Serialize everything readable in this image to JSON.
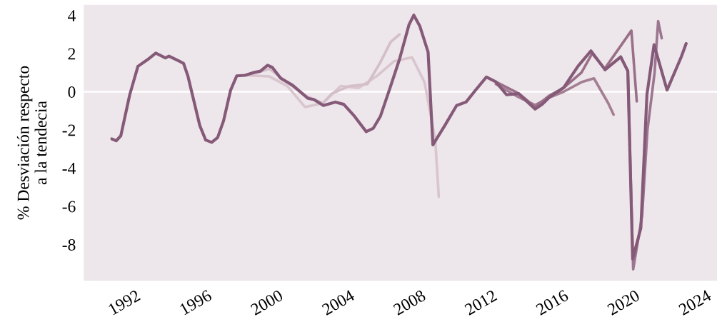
{
  "chart_data": {
    "type": "line",
    "ylabel": "% Desviación respecto\na la tendecia",
    "xlim": [
      1989.1,
      2024.6
    ],
    "ylim": [
      -9.9,
      4.55
    ],
    "xticks": [
      1992,
      1996,
      2000,
      2004,
      2008,
      2012,
      2016,
      2020,
      2024
    ],
    "yticks": [
      {
        "value": 4,
        "label": "4"
      },
      {
        "value": 2,
        "label": "2"
      },
      {
        "value": 0,
        "label": "0"
      },
      {
        "value": -2,
        "label": "-2"
      },
      {
        "value": -4,
        "label": "-4"
      },
      {
        "value": -6,
        "label": "-6"
      },
      {
        "value": -8,
        "label": "-8"
      }
    ],
    "grid": false,
    "marker": "none",
    "line_style": "solid",
    "ref_lines": [
      {
        "axis": "y",
        "value": 0,
        "color": "#ffffff",
        "line_style": "solid"
      }
    ],
    "series": [
      {
        "color": "#d9c5ce",
        "x": [
          1998.2,
          1999.5,
          2000.5,
          2001.5,
          2002.5,
          2003.5,
          2004.5,
          2005.5,
          2006.5,
          2007.5,
          2008.2,
          2008.8,
          2009.0
        ],
        "values": [
          0.86,
          0.8,
          0.3,
          -0.8,
          -0.6,
          0.3,
          0.2,
          0.8,
          1.6,
          1.8,
          0.5,
          -2.5,
          -5.5
        ]
      },
      {
        "color": "#d4bfc9",
        "x": [
          1998.5,
          1999.5,
          2000.5,
          2001.5,
          2002.5,
          2003.0,
          2004.0,
          2005.0,
          2005.7,
          2006.3,
          2006.8
        ],
        "values": [
          0.9,
          1.2,
          0.5,
          -0.2,
          -0.6,
          -0.1,
          0.3,
          0.4,
          1.5,
          2.6,
          3.0
        ]
      },
      {
        "color": "#a47e93",
        "x": [
          2012.2,
          2013.5,
          2014.4,
          2015.2,
          2016.0,
          2017.0,
          2017.7,
          2018.5,
          2018.8
        ],
        "values": [
          0.4,
          -0.3,
          -0.7,
          -0.3,
          0.0,
          0.5,
          0.7,
          -0.6,
          -1.2
        ]
      },
      {
        "color": "#9a7089",
        "x": [
          2012.2,
          2013.5,
          2014.4,
          2015.2,
          2016.0,
          2017.0,
          2017.6,
          2018.3,
          2019.8,
          2020.1
        ],
        "values": [
          0.52,
          -0.1,
          -0.8,
          -0.2,
          0.2,
          1.0,
          2.0,
          1.2,
          3.2,
          -0.5
        ]
      },
      {
        "color": "#9c7590",
        "x": [
          2018.3,
          2019.2,
          2019.6,
          2019.9,
          2020.4,
          2020.7,
          2021.1,
          2021.3,
          2021.5
        ],
        "values": [
          1.15,
          1.8,
          1.1,
          -9.3,
          -6.5,
          -2.0,
          1.0,
          3.7,
          2.8
        ]
      },
      {
        "color": "#855a78",
        "x": [
          1990.67,
          1990.91,
          1991.17,
          1991.67,
          1992.13,
          1992.67,
          1993.13,
          1993.67,
          1993.87,
          1994.53,
          1994.69,
          1994.93,
          1995.6,
          1995.93,
          1996.27,
          1996.6,
          1996.93,
          1997.33,
          1997.67,
          1998.13,
          1998.67,
          1999.0,
          1999.4,
          1999.67,
          2000.13,
          2000.8,
          2001.67,
          2002.0,
          2002.53,
          2003.2,
          2003.67,
          2004.27,
          2004.93,
          2005.33,
          2005.73,
          2006.27,
          2006.8,
          2007.33,
          2007.6,
          2007.93,
          2008.4,
          2008.67,
          2009.33,
          2010.0,
          2010.53,
          2011.07,
          2011.67,
          2012.2,
          2012.8,
          2013.47,
          2014.4,
          2014.8,
          2015.2,
          2016.0,
          2016.8,
          2017.53,
          2018.33,
          2019.2,
          2019.6,
          2019.87,
          2020.33,
          2020.67,
          2021.07,
          2021.8,
          2022.6,
          2022.87
        ],
        "values": [
          -2.47,
          -2.57,
          -2.31,
          -0.16,
          1.33,
          1.68,
          2.02,
          1.77,
          1.86,
          1.56,
          1.48,
          0.83,
          -1.78,
          -2.53,
          -2.65,
          -2.4,
          -1.53,
          0.09,
          0.83,
          0.86,
          1.02,
          1.08,
          1.39,
          1.27,
          0.71,
          0.34,
          -0.35,
          -0.41,
          -0.72,
          -0.54,
          -0.66,
          -1.28,
          -2.09,
          -1.91,
          -1.28,
          0.21,
          1.71,
          3.51,
          4.01,
          3.45,
          2.08,
          -2.78,
          -1.78,
          -0.72,
          -0.54,
          0.09,
          0.77,
          0.52,
          -0.16,
          -0.1,
          -0.91,
          -0.66,
          -0.29,
          0.21,
          1.33,
          2.14,
          1.15,
          1.83,
          1.08,
          -8.76,
          -7.14,
          -0.16,
          2.46,
          0.09,
          1.83,
          2.52
        ]
      }
    ]
  }
}
